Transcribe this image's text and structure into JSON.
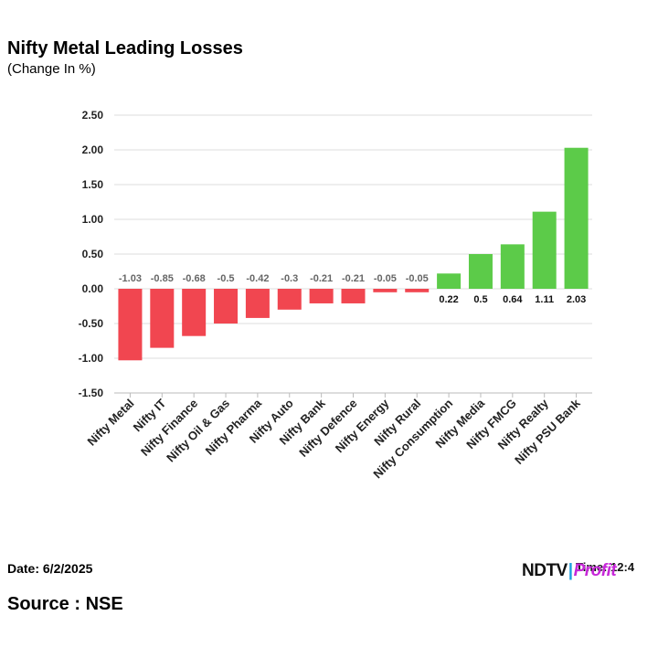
{
  "header": {
    "title": "Nifty Metal Leading Losses",
    "subtitle": "(Change In %)"
  },
  "footer": {
    "date": "Date: 6/2/2025",
    "source": "Source : NSE",
    "time": "Time: 12:4"
  },
  "brand": {
    "ndtv": "NDTV",
    "separator": "|",
    "profit": "Profit"
  },
  "colors": {
    "negative": "#f14650",
    "positive": "#5ccb49",
    "grid": "#dddddd",
    "axis": "#bbbbbb"
  },
  "chart_data": {
    "type": "bar",
    "title": "Nifty Metal Leading Losses",
    "subtitle": "(Change In %)",
    "xlabel": "",
    "ylabel": "",
    "ylim": [
      -1.5,
      2.5
    ],
    "yticks": [
      2.5,
      2.0,
      1.5,
      1.0,
      0.5,
      0.0,
      -0.5,
      -1.0,
      -1.5
    ],
    "ytick_labels": [
      "2.50",
      "2.00",
      "1.50",
      "1.00",
      "0.50",
      "0.00",
      "-0.50",
      "-1.00",
      "-1.50"
    ],
    "grid": true,
    "categories": [
      "Nifty Metal",
      "Nifty IT",
      "Nifty Finance",
      "Nifty Oil & Gas",
      "Nifty Pharma",
      "Nifty Auto",
      "Nifty Bank",
      "Nifty Defence",
      "Nifty Energy",
      "Nifty Rural",
      "Nifty Consumption",
      "Nifty Media",
      "Nifty FMCG",
      "Nifty Realty",
      "Nifty PSU Bank"
    ],
    "values": [
      -1.03,
      -0.85,
      -0.68,
      -0.5,
      -0.42,
      -0.3,
      -0.21,
      -0.21,
      -0.05,
      -0.05,
      0.22,
      0.5,
      0.64,
      1.11,
      2.03
    ],
    "value_labels": [
      "-1.03",
      "-0.85",
      "-0.68",
      "-0.5",
      "-0.42",
      "-0.3",
      "-0.21",
      "-0.21",
      "-0.05",
      "-0.05",
      "0.22",
      "0.5",
      "0.64",
      "1.11",
      "2.03"
    ]
  }
}
